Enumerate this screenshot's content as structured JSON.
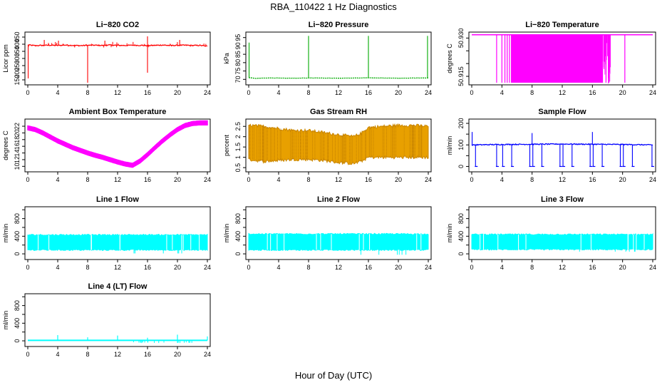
{
  "figure": {
    "title": "RBA_110422  1 Hz Diagnostics",
    "xlabel": "Hour of Day (UTC)"
  },
  "chart_data": [
    {
      "id": "co2",
      "type": "line",
      "title": "Li−820 CO2",
      "ylabel": "Licor ppm",
      "color": "#ff0000",
      "xlim": [
        0,
        24
      ],
      "ylim": [
        130,
        470
      ],
      "yticks": [
        150,
        200,
        250,
        300,
        350,
        400,
        450
      ],
      "xticks": [
        0,
        4,
        8,
        12,
        16,
        20,
        24
      ],
      "x": [
        0,
        1,
        2,
        3,
        4,
        5,
        6,
        7,
        8,
        9,
        10,
        11,
        12,
        13,
        14,
        15,
        16,
        17,
        18,
        19,
        20,
        21,
        22,
        23,
        24
      ],
      "y": [
        395,
        390,
        392,
        393,
        391,
        394,
        392,
        390,
        392,
        393,
        391,
        394,
        392,
        391,
        393,
        392,
        390,
        392,
        394,
        391,
        392,
        393,
        391,
        392,
        385
      ],
      "spikes": [
        {
          "x": 0.05,
          "y": 160
        },
        {
          "x": 8.0,
          "y": 130
        },
        {
          "x": 16.0,
          "y": 200
        },
        {
          "x": 16.0,
          "y": 455
        },
        {
          "x": 2.2,
          "y": 430
        },
        {
          "x": 4.1,
          "y": 425
        },
        {
          "x": 10.3,
          "y": 425
        },
        {
          "x": 20.3,
          "y": 430
        }
      ]
    },
    {
      "id": "pressure",
      "type": "line",
      "title": "Li−820 Pressure",
      "ylabel": "kPa",
      "color": "#00aa00",
      "xlim": [
        0,
        24
      ],
      "ylim": [
        68,
        97
      ],
      "yticks": [
        70,
        75,
        80,
        85,
        90,
        95
      ],
      "xticks": [
        0,
        4,
        8,
        12,
        16,
        20,
        24
      ],
      "x": [
        0,
        1,
        2,
        4,
        6,
        8,
        10,
        12,
        14,
        16,
        18,
        20,
        22,
        24
      ],
      "y": [
        71,
        70.6,
        70.8,
        70.8,
        70.7,
        70.8,
        70.8,
        70.7,
        70.8,
        70.9,
        70.8,
        70.7,
        70.8,
        70.8
      ],
      "spikes": [
        {
          "x": 0.05,
          "y": 92
        },
        {
          "x": 8.0,
          "y": 96
        },
        {
          "x": 16.0,
          "y": 96
        },
        {
          "x": 23.9,
          "y": 96
        }
      ]
    },
    {
      "id": "licor_temp",
      "type": "area",
      "title": "Li−820 Temperature",
      "ylabel": "degrees C",
      "color": "#ff00ff",
      "xlim": [
        0,
        24
      ],
      "ylim": [
        50.9125,
        50.9315
      ],
      "yticks": [
        50.915,
        50.92,
        50.925,
        50.93
      ],
      "ytick_labels": [
        "50.915",
        "",
        "",
        "50.930"
      ],
      "xticks": [
        0,
        4,
        8,
        12,
        16,
        20,
        24
      ],
      "baseline": 50.9313,
      "bands": [
        {
          "from": 5.2,
          "to": 17.4
        }
      ],
      "dips": [
        3.3,
        4.0,
        4.4,
        4.7,
        5.0,
        17.8,
        18.2,
        20.3
      ]
    },
    {
      "id": "box_temp",
      "type": "line",
      "title": "Ambient Box Temperature",
      "ylabel": "degrees C",
      "color": "#ff00ff",
      "xlim": [
        0,
        24
      ],
      "ylim": [
        9,
        23.5
      ],
      "yticks": [
        10,
        12,
        14,
        16,
        18,
        20,
        22
      ],
      "xticks": [
        0,
        4,
        8,
        12,
        16,
        20,
        24
      ],
      "x": [
        0,
        1,
        2,
        3,
        4,
        5,
        6,
        7,
        8,
        9,
        10,
        11,
        12,
        13,
        14,
        15,
        16,
        17,
        18,
        19,
        20,
        21,
        22,
        23,
        24
      ],
      "y": [
        21.5,
        21.0,
        20.0,
        18.8,
        17.6,
        16.6,
        15.6,
        14.8,
        14.0,
        13.3,
        12.7,
        12.0,
        11.3,
        10.7,
        10.3,
        11.6,
        13.5,
        15.6,
        17.6,
        19.4,
        21.0,
        22.2,
        22.8,
        23.0,
        23.0
      ],
      "band": 0.6
    },
    {
      "id": "rh",
      "type": "area",
      "title": "Gas Stream RH",
      "ylabel": "percent",
      "color": "#cc8800",
      "xlim": [
        0,
        24
      ],
      "ylim": [
        0.4,
        2.75
      ],
      "yticks": [
        0.5,
        1.0,
        1.5,
        2.0,
        2.5
      ],
      "xticks": [
        0,
        4,
        8,
        12,
        16,
        20,
        24
      ],
      "x": [
        0,
        2,
        4,
        6,
        8,
        10,
        12,
        14,
        15,
        16,
        18,
        20,
        22,
        24
      ],
      "upper": [
        2.55,
        2.5,
        2.4,
        2.3,
        2.3,
        2.2,
        2.1,
        2.0,
        2.15,
        2.45,
        2.5,
        2.55,
        2.55,
        2.5
      ],
      "lower": [
        0.9,
        0.8,
        0.85,
        0.9,
        0.9,
        0.85,
        0.75,
        0.7,
        0.8,
        1.0,
        1.0,
        1.0,
        1.0,
        1.0
      ]
    },
    {
      "id": "sample_flow",
      "type": "line",
      "title": "Sample Flow",
      "ylabel": "ml/min",
      "color": "#0000ff",
      "xlim": [
        0,
        24
      ],
      "ylim": [
        -15,
        210
      ],
      "yticks": [
        0,
        50,
        100,
        150,
        200
      ],
      "ytick_labels": [
        "0",
        "",
        "100",
        "",
        "200"
      ],
      "xticks": [
        0,
        4,
        8,
        12,
        16,
        20,
        24
      ],
      "x": [
        0,
        4,
        8,
        12,
        16,
        20,
        24
      ],
      "y": [
        100,
        102,
        103,
        104,
        103,
        102,
        100
      ],
      "dips": [
        0.5,
        3.3,
        4.1,
        5.3,
        7.7,
        8.1,
        9.3,
        11.7,
        12.1,
        13.3,
        15.7,
        16.1,
        17.3,
        19.7,
        20.1,
        21.3,
        23.9
      ],
      "spikes": [
        {
          "x": 0.05,
          "y": 160
        },
        {
          "x": 8.0,
          "y": 155
        },
        {
          "x": 16.0,
          "y": 160
        }
      ]
    },
    {
      "id": "line1",
      "type": "area",
      "title": "Line 1 Flow",
      "ylabel": "ml/min",
      "color": "#00ffff",
      "xlim": [
        0,
        24
      ],
      "ylim": [
        -80,
        1020
      ],
      "yticks": [
        0,
        200,
        400,
        600,
        800,
        1000
      ],
      "ytick_labels": [
        "0",
        "",
        "400",
        "",
        "800",
        ""
      ],
      "xticks": [
        0,
        4,
        8,
        12,
        16,
        20,
        24
      ],
      "upper": 430,
      "lower": 90,
      "low_dip": 10
    },
    {
      "id": "line2",
      "type": "area",
      "title": "Line 2 Flow",
      "ylabel": "ml/min",
      "color": "#00ffff",
      "xlim": [
        0,
        24
      ],
      "ylim": [
        -80,
        1020
      ],
      "yticks": [
        0,
        200,
        400,
        600,
        800,
        1000
      ],
      "ytick_labels": [
        "0",
        "",
        "400",
        "",
        "800",
        ""
      ],
      "xticks": [
        0,
        4,
        8,
        12,
        16,
        20,
        24
      ],
      "upper": 450,
      "lower": 90,
      "low_dip": -20
    },
    {
      "id": "line3",
      "type": "area",
      "title": "Line 3 Flow",
      "ylabel": "ml/min",
      "color": "#00ffff",
      "xlim": [
        0,
        24
      ],
      "ylim": [
        -80,
        1020
      ],
      "yticks": [
        0,
        200,
        400,
        600,
        800,
        1000
      ],
      "ytick_labels": [
        "0",
        "",
        "400",
        "",
        "800",
        ""
      ],
      "xticks": [
        0,
        4,
        8,
        12,
        16,
        20,
        24
      ],
      "upper": 440,
      "lower": 100,
      "low_dip": 50
    },
    {
      "id": "line4",
      "type": "line",
      "title": "Line 4 (LT) Flow",
      "ylabel": "ml/min",
      "color": "#00ffff",
      "xlim": [
        0,
        24
      ],
      "ylim": [
        -80,
        1020
      ],
      "yticks": [
        0,
        200,
        400,
        600,
        800,
        1000
      ],
      "ytick_labels": [
        "0",
        "",
        "400",
        "",
        "800",
        ""
      ],
      "xticks": [
        0,
        4,
        8,
        12,
        16,
        20,
        24
      ],
      "x": [
        0,
        24
      ],
      "y": [
        10,
        10
      ],
      "spikes": [
        {
          "x": 4.0,
          "y": 130
        },
        {
          "x": 8.0,
          "y": 80
        },
        {
          "x": 12.0,
          "y": 120
        },
        {
          "x": 16.0,
          "y": 70
        },
        {
          "x": 20.0,
          "y": 140
        },
        {
          "x": 24.0,
          "y": 100
        }
      ]
    }
  ]
}
